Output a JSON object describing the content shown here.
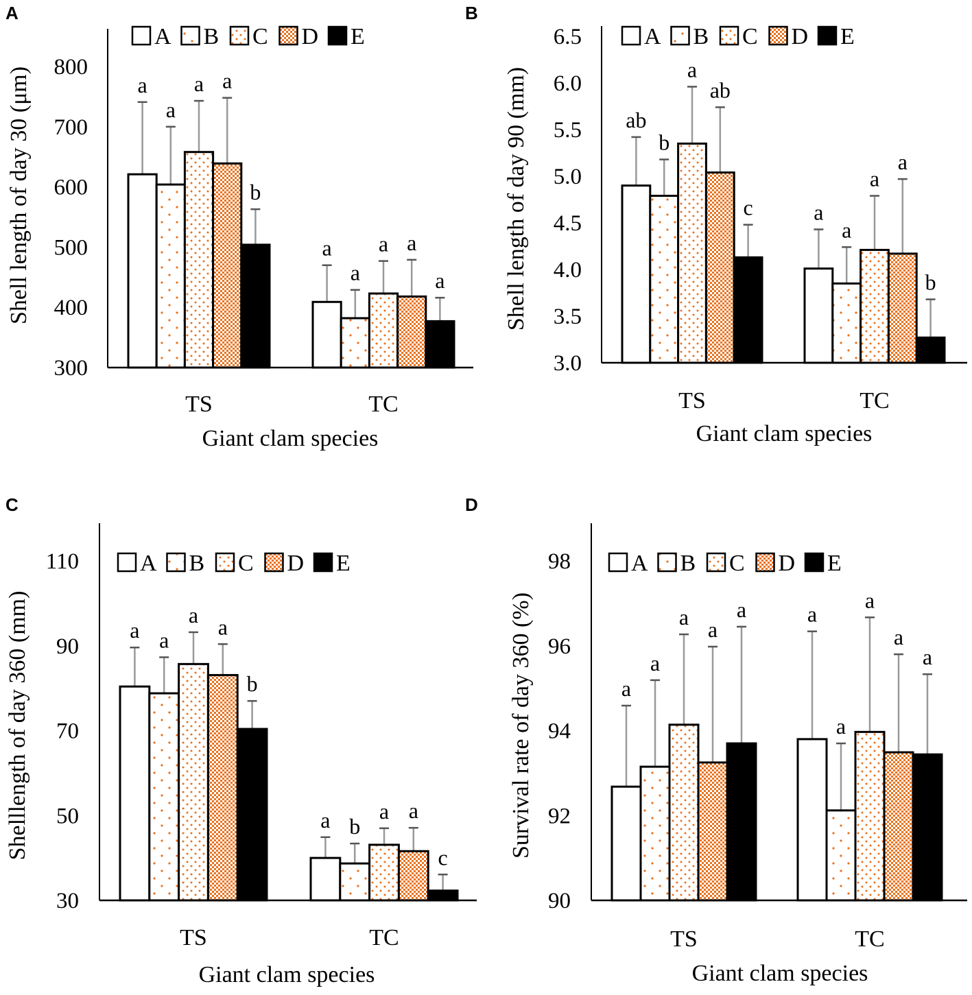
{
  "figure": {
    "series_colors": {
      "pattern": "#e8731f",
      "solid": "#000000",
      "error_bar": "#999999"
    }
  },
  "legend": [
    "A",
    "B",
    "C",
    "D",
    "E"
  ],
  "chart_data": [
    {
      "panel": "A",
      "type": "bar",
      "title": "",
      "xlabel": "Giant clam species",
      "ylabel": "Shell length of day 30 (μm)",
      "categories": [
        "TS",
        "TC"
      ],
      "ylim": [
        300,
        800
      ],
      "yticks": [
        "300",
        "400",
        "500",
        "600",
        "700",
        "800"
      ],
      "series": [
        {
          "name": "A",
          "values": [
            621,
            409
          ],
          "sd": [
            120,
            61
          ],
          "letters": [
            "a",
            "a"
          ]
        },
        {
          "name": "B",
          "values": [
            604,
            382
          ],
          "sd": [
            96,
            47
          ],
          "letters": [
            "a",
            "a"
          ]
        },
        {
          "name": "C",
          "values": [
            658,
            423
          ],
          "sd": [
            85,
            54
          ],
          "letters": [
            "a",
            "a"
          ]
        },
        {
          "name": "D",
          "values": [
            639,
            418
          ],
          "sd": [
            109,
            61
          ],
          "letters": [
            "a",
            "a"
          ]
        },
        {
          "name": "E",
          "values": [
            504,
            377
          ],
          "sd": [
            59,
            39
          ],
          "letters": [
            "b",
            "a"
          ]
        }
      ]
    },
    {
      "panel": "B",
      "type": "bar",
      "title": "",
      "xlabel": "Giant clam species",
      "ylabel": "Shell length of day 90 (mm)",
      "categories": [
        "TS",
        "TC"
      ],
      "ylim": [
        3.0,
        6.5
      ],
      "yticks": [
        "3.0",
        "3.5",
        "4.0",
        "4.5",
        "5.0",
        "5.5",
        "6.0",
        "6.5"
      ],
      "series": [
        {
          "name": "A",
          "values": [
            4.9,
            4.01
          ],
          "sd": [
            0.52,
            0.42
          ],
          "letters": [
            "ab",
            "a"
          ]
        },
        {
          "name": "B",
          "values": [
            4.79,
            3.85
          ],
          "sd": [
            0.39,
            0.39
          ],
          "letters": [
            "b",
            "a"
          ]
        },
        {
          "name": "C",
          "values": [
            5.35,
            4.21
          ],
          "sd": [
            0.61,
            0.58
          ],
          "letters": [
            "a",
            "a"
          ]
        },
        {
          "name": "D",
          "values": [
            5.04,
            4.17
          ],
          "sd": [
            0.7,
            0.8
          ],
          "letters": [
            "ab",
            "a"
          ]
        },
        {
          "name": "E",
          "values": [
            4.13,
            3.27
          ],
          "sd": [
            0.35,
            0.41
          ],
          "letters": [
            "c",
            "b"
          ]
        }
      ]
    },
    {
      "panel": "C",
      "type": "bar",
      "title": "",
      "xlabel": "Giant clam species",
      "ylabel": "Shelllength of day 360 (mm)",
      "categories": [
        "TS",
        "TC"
      ],
      "ylim": [
        30,
        110
      ],
      "yticks": [
        "30",
        "50",
        "70",
        "90",
        "110"
      ],
      "series": [
        {
          "name": "A",
          "values": [
            80.4,
            40.0
          ],
          "sd": [
            9.2,
            4.9
          ],
          "letters": [
            "a",
            "a"
          ]
        },
        {
          "name": "B",
          "values": [
            78.8,
            38.7
          ],
          "sd": [
            8.5,
            4.7
          ],
          "letters": [
            "a",
            "b"
          ]
        },
        {
          "name": "C",
          "values": [
            85.7,
            43.1
          ],
          "sd": [
            7.5,
            3.9
          ],
          "letters": [
            "a",
            "a"
          ]
        },
        {
          "name": "D",
          "values": [
            83.1,
            41.6
          ],
          "sd": [
            7.3,
            5.5
          ],
          "letters": [
            "a",
            "a"
          ]
        },
        {
          "name": "E",
          "values": [
            70.4,
            32.3
          ],
          "sd": [
            6.6,
            3.8
          ],
          "letters": [
            "b",
            "c"
          ]
        }
      ]
    },
    {
      "panel": "D",
      "type": "bar",
      "title": "",
      "xlabel": "Giant clam species",
      "ylabel": "Survival rate of day 360 (%)",
      "categories": [
        "TS",
        "TC"
      ],
      "ylim": [
        90,
        98
      ],
      "yticks": [
        "90",
        "92",
        "94",
        "96",
        "98"
      ],
      "series": [
        {
          "name": "A",
          "values": [
            92.68,
            93.8
          ],
          "sd": [
            1.91,
            2.54
          ],
          "letters": [
            "a",
            "a"
          ]
        },
        {
          "name": "B",
          "values": [
            93.15,
            92.12
          ],
          "sd": [
            2.04,
            1.58
          ],
          "letters": [
            "a",
            "a"
          ]
        },
        {
          "name": "C",
          "values": [
            94.14,
            93.97
          ],
          "sd": [
            2.13,
            2.7
          ],
          "letters": [
            "a",
            "a"
          ]
        },
        {
          "name": "D",
          "values": [
            93.25,
            93.49
          ],
          "sd": [
            2.73,
            2.31
          ],
          "letters": [
            "a",
            "a"
          ]
        },
        {
          "name": "E",
          "values": [
            93.7,
            93.44
          ],
          "sd": [
            2.75,
            1.89
          ],
          "letters": [
            "a",
            "a"
          ]
        }
      ]
    }
  ]
}
